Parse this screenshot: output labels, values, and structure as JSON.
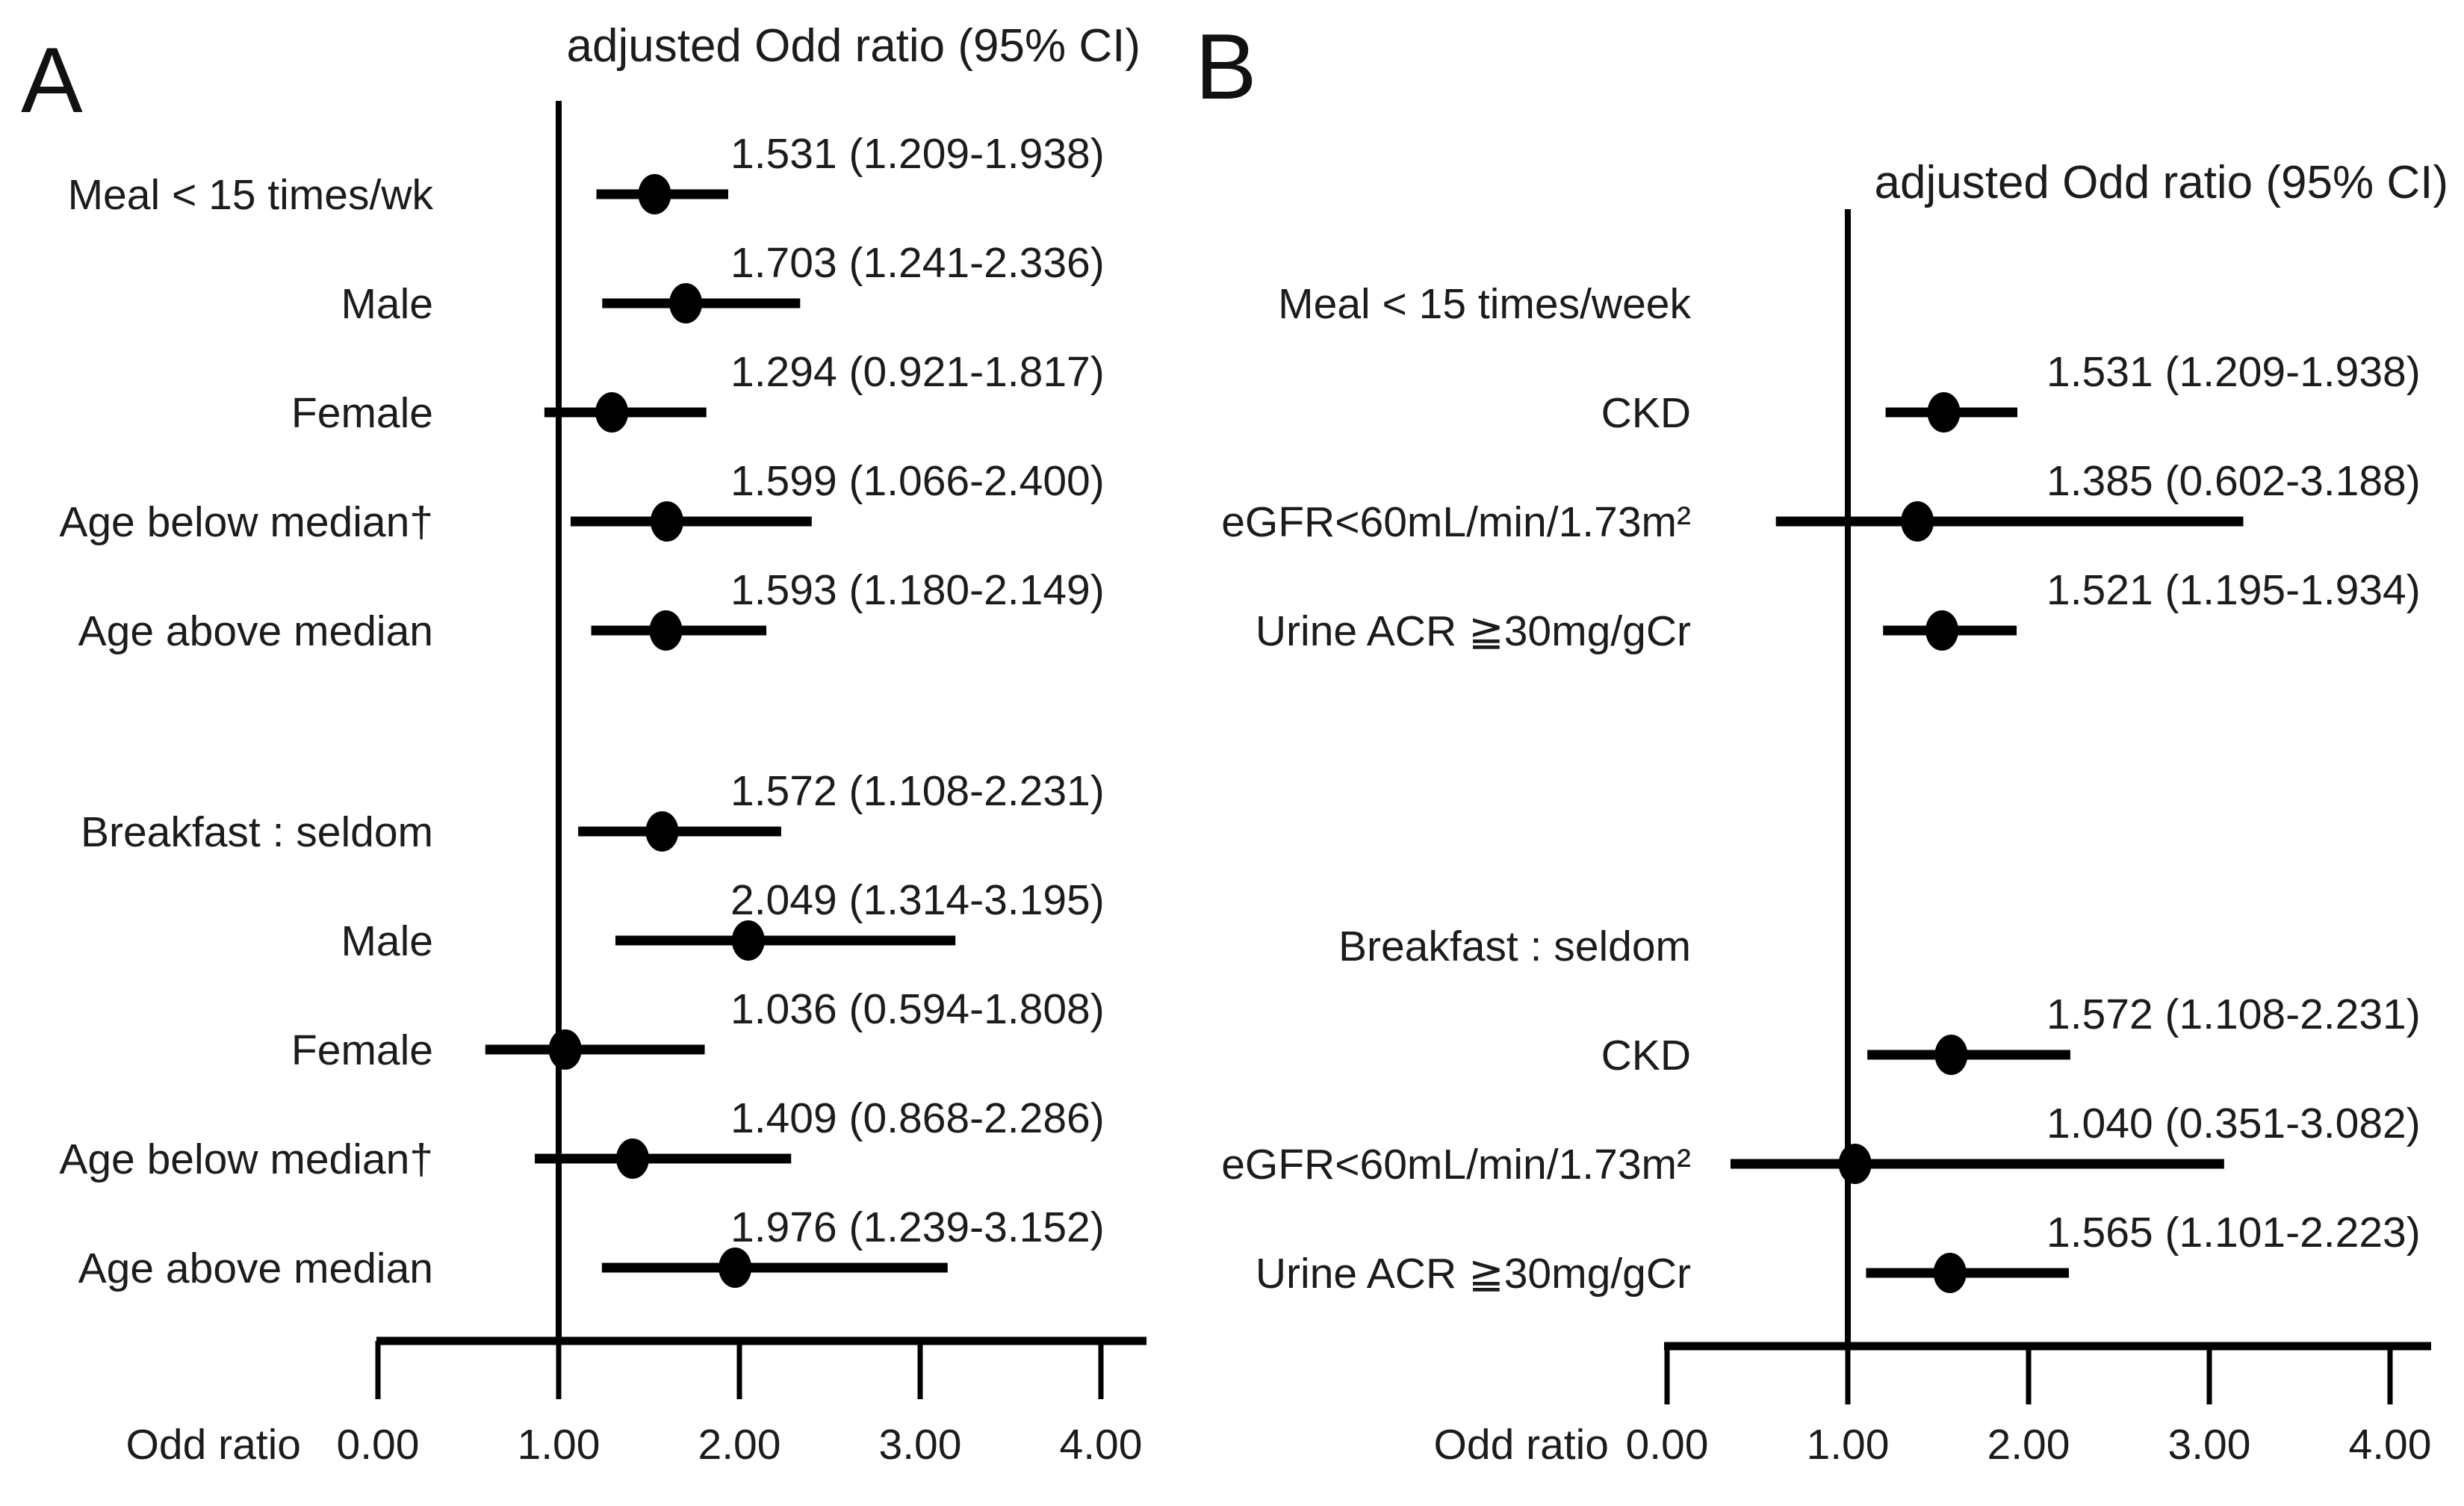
{
  "figure": {
    "background": "#ffffff",
    "ink": "#000000",
    "text_color": "#1c1c1c"
  },
  "panels": [
    {
      "letter": "A",
      "title": "adjusted Odd ratio (95% CI)",
      "axis_label": "Odd ratio"
    },
    {
      "letter": "B",
      "title": "adjusted Odd ratio (95% CI)",
      "axis_label": "Odd ratio"
    }
  ],
  "chart_data": [
    {
      "type": "scatter",
      "subtype": "forest-plot",
      "panel": "A",
      "title": "adjusted Odd ratio (95% CI)",
      "xlabel": "Odd ratio",
      "xlim": [
        0,
        4
      ],
      "xticks": [
        0,
        1,
        2,
        3,
        4
      ],
      "xtick_labels": [
        "0.00",
        "1.00",
        "2.00",
        "3.00",
        "4.00"
      ],
      "reference_line_x": 1.0,
      "grid": false,
      "legend": "none",
      "groups": [
        {
          "header": null,
          "rows": [
            {
              "label": "Meal < 15 times/wk",
              "or": 1.531,
              "ci_low": 1.209,
              "ci_high": 1.938,
              "display": "1.531 (1.209-1.938)"
            },
            {
              "label": "Male",
              "or": 1.703,
              "ci_low": 1.241,
              "ci_high": 2.336,
              "display": "1.703 (1.241-2.336)"
            },
            {
              "label": "Female",
              "or": 1.294,
              "ci_low": 0.921,
              "ci_high": 1.817,
              "display": "1.294 (0.921-1.817)"
            },
            {
              "label": "Age below median†",
              "or": 1.599,
              "ci_low": 1.066,
              "ci_high": 2.4,
              "display": "1.599 (1.066-2.400)"
            },
            {
              "label": "Age above median",
              "or": 1.593,
              "ci_low": 1.18,
              "ci_high": 2.149,
              "display": "1.593 (1.180-2.149)"
            }
          ]
        },
        {
          "header": null,
          "rows": [
            {
              "label": "Breakfast : seldom",
              "or": 1.572,
              "ci_low": 1.108,
              "ci_high": 2.231,
              "display": "1.572 (1.108-2.231)"
            },
            {
              "label": "Male",
              "or": 2.049,
              "ci_low": 1.314,
              "ci_high": 3.195,
              "display": "2.049 (1.314-3.195)"
            },
            {
              "label": "Female",
              "or": 1.036,
              "ci_low": 0.594,
              "ci_high": 1.808,
              "display": "1.036 (0.594-1.808)"
            },
            {
              "label": "Age below median†",
              "or": 1.409,
              "ci_low": 0.868,
              "ci_high": 2.286,
              "display": "1.409 (0.868-2.286)"
            },
            {
              "label": "Age above median",
              "or": 1.976,
              "ci_low": 1.239,
              "ci_high": 3.152,
              "display": "1.976 (1.239-3.152)"
            }
          ]
        }
      ]
    },
    {
      "type": "scatter",
      "subtype": "forest-plot",
      "panel": "B",
      "title": "adjusted Odd ratio (95% CI)",
      "xlabel": "Odd ratio",
      "xlim": [
        0,
        4
      ],
      "xticks": [
        0,
        1,
        2,
        3,
        4
      ],
      "xtick_labels": [
        "0.00",
        "1.00",
        "2.00",
        "3.00",
        "4.00"
      ],
      "reference_line_x": 1.0,
      "grid": false,
      "legend": "none",
      "groups": [
        {
          "header": "Meal < 15 times/week",
          "rows": [
            {
              "label": "CKD",
              "or": 1.531,
              "ci_low": 1.209,
              "ci_high": 1.938,
              "display": "1.531 (1.209-1.938)"
            },
            {
              "label": "eGFR<60mL/min/1.73m²",
              "or": 1.385,
              "ci_low": 0.602,
              "ci_high": 3.188,
              "display": "1.385 (0.602-3.188)"
            },
            {
              "label": "Urine ACR ≧30mg/gCr",
              "or": 1.521,
              "ci_low": 1.195,
              "ci_high": 1.934,
              "display": "1.521 (1.195-1.934)"
            }
          ]
        },
        {
          "header": "Breakfast : seldom",
          "rows": [
            {
              "label": "CKD",
              "or": 1.572,
              "ci_low": 1.108,
              "ci_high": 2.231,
              "display": "1.572 (1.108-2.231)"
            },
            {
              "label": "eGFR<60mL/min/1.73m²",
              "or": 1.04,
              "ci_low": 0.351,
              "ci_high": 3.082,
              "display": "1.040 (0.351-3.082)"
            },
            {
              "label": "Urine ACR ≧30mg/gCr",
              "or": 1.565,
              "ci_low": 1.101,
              "ci_high": 2.223,
              "display": "1.565 (1.101-2.223)"
            }
          ]
        }
      ]
    }
  ]
}
